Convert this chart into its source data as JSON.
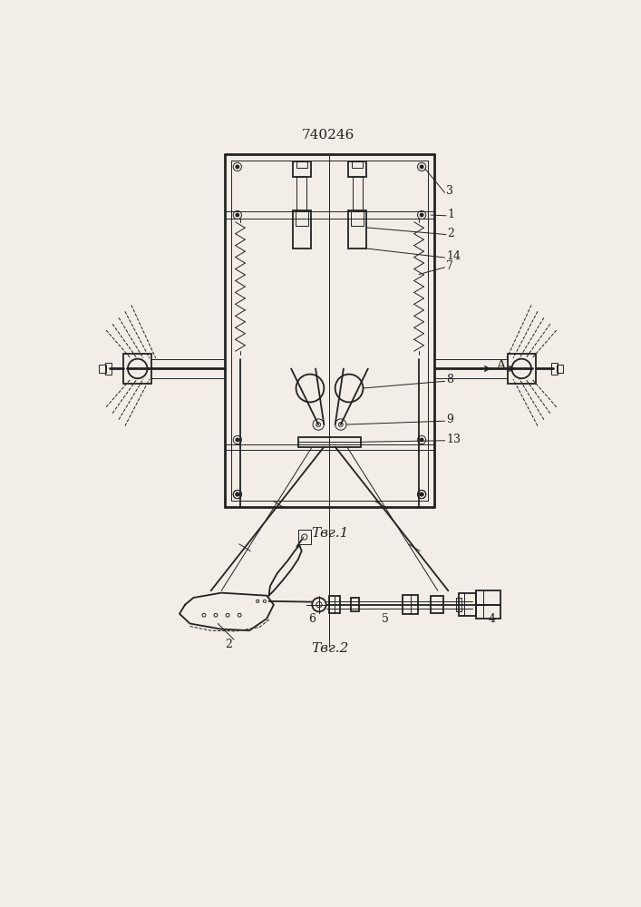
{
  "title": "740246",
  "fig1_caption": "Τвг.1",
  "fig2_caption": "Τвг.2",
  "bg_color": "#f2ede6",
  "line_color": "#222222",
  "label_color": "#222222",
  "arrow_label": "A"
}
